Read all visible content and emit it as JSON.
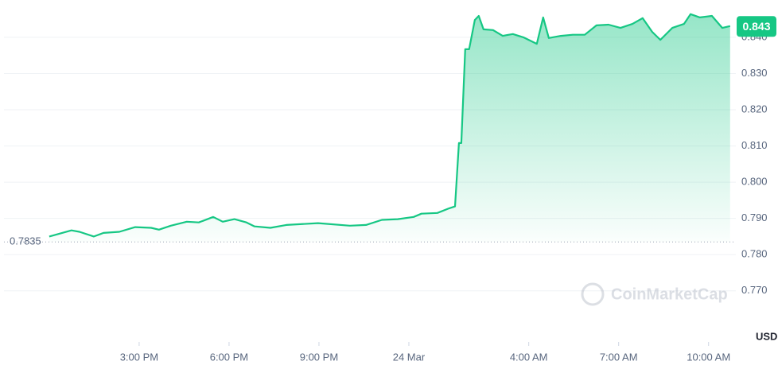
{
  "chart_data": {
    "type": "line",
    "x": [
      0,
      0.74,
      1.01,
      1.49,
      1.81,
      2.34,
      2.87,
      3.4,
      3.66,
      4.06,
      4.59,
      4.99,
      5.47,
      5.79,
      6.18,
      6.58,
      6.85,
      7.38,
      7.91,
      8.97,
      10.03,
      10.57,
      11.1,
      11.63,
      12.16,
      12.42,
      12.95,
      13.35,
      13.54,
      13.67,
      13.75,
      13.88,
      14.01,
      14.2,
      14.33,
      14.49,
      14.81,
      15.13,
      15.47,
      15.82,
      16.27,
      16.48,
      16.67,
      17.07,
      17.47,
      17.87,
      18.26,
      18.66,
      19.06,
      19.46,
      19.8,
      20.12,
      20.39,
      20.79,
      21.18,
      21.4,
      21.71,
      22.11,
      22.46,
      22.72
    ],
    "values": [
      0.785,
      0.7867,
      0.7863,
      0.785,
      0.786,
      0.7863,
      0.7876,
      0.7874,
      0.7869,
      0.788,
      0.7891,
      0.7889,
      0.7904,
      0.7891,
      0.7898,
      0.7889,
      0.7878,
      0.7874,
      0.7882,
      0.7887,
      0.788,
      0.7882,
      0.7896,
      0.7898,
      0.7904,
      0.7913,
      0.7915,
      0.7928,
      0.7933,
      0.8108,
      0.8108,
      0.8367,
      0.8367,
      0.8448,
      0.8459,
      0.8422,
      0.842,
      0.8404,
      0.8409,
      0.84,
      0.8382,
      0.8455,
      0.8398,
      0.8404,
      0.8407,
      0.8407,
      0.8433,
      0.8435,
      0.8426,
      0.8437,
      0.8453,
      0.8415,
      0.8393,
      0.8426,
      0.8437,
      0.8464,
      0.8455,
      0.8459,
      0.8426,
      0.8431
    ],
    "color": "#16c784",
    "xlim": [
      -1.51,
      22.91
    ],
    "xticks": [
      {
        "value": 3,
        "label": "3:00 PM"
      },
      {
        "value": 6,
        "label": "6:00 PM"
      },
      {
        "value": 9,
        "label": "9:00 PM"
      },
      {
        "value": 12,
        "label": "24 Mar"
      },
      {
        "value": 16,
        "label": "4:00 AM"
      },
      {
        "value": 19,
        "label": "7:00 AM"
      },
      {
        "value": 22,
        "label": "10:00 AM"
      }
    ],
    "ylim": [
      0.7559,
      0.8503
    ],
    "yticks": [
      {
        "value": 0.77,
        "label": "0.770"
      },
      {
        "value": 0.78,
        "label": "0.780"
      },
      {
        "value": 0.79,
        "label": "0.790"
      },
      {
        "value": 0.8,
        "label": "0.800"
      },
      {
        "value": 0.81,
        "label": "0.810"
      },
      {
        "value": 0.82,
        "label": "0.820"
      },
      {
        "value": 0.83,
        "label": "0.830"
      },
      {
        "value": 0.84,
        "label": "0.840"
      }
    ],
    "grid": true,
    "baseline": 0.7835,
    "current_price": 0.843,
    "currency": "USD",
    "watermark": "CoinMarketCap"
  }
}
